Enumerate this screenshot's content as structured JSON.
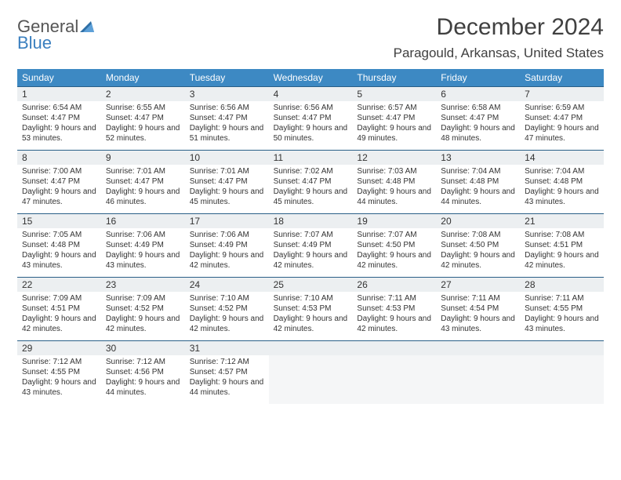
{
  "logo": {
    "line1": "General",
    "line2": "Blue"
  },
  "title": "December 2024",
  "location": "Paragould, Arkansas, United States",
  "colors": {
    "header_bg": "#3d89c3",
    "header_text": "#ffffff",
    "daynum_bg": "#eceff1",
    "daynum_border": "#2a5f87",
    "body_text": "#333333",
    "empty_bg": "#f5f6f7",
    "logo_gray": "#555555",
    "logo_blue": "#3a7fbf"
  },
  "day_headers": [
    "Sunday",
    "Monday",
    "Tuesday",
    "Wednesday",
    "Thursday",
    "Friday",
    "Saturday"
  ],
  "weeks": [
    [
      {
        "n": "1",
        "sr": "6:54 AM",
        "ss": "4:47 PM",
        "dl": "9 hours and 53 minutes."
      },
      {
        "n": "2",
        "sr": "6:55 AM",
        "ss": "4:47 PM",
        "dl": "9 hours and 52 minutes."
      },
      {
        "n": "3",
        "sr": "6:56 AM",
        "ss": "4:47 PM",
        "dl": "9 hours and 51 minutes."
      },
      {
        "n": "4",
        "sr": "6:56 AM",
        "ss": "4:47 PM",
        "dl": "9 hours and 50 minutes."
      },
      {
        "n": "5",
        "sr": "6:57 AM",
        "ss": "4:47 PM",
        "dl": "9 hours and 49 minutes."
      },
      {
        "n": "6",
        "sr": "6:58 AM",
        "ss": "4:47 PM",
        "dl": "9 hours and 48 minutes."
      },
      {
        "n": "7",
        "sr": "6:59 AM",
        "ss": "4:47 PM",
        "dl": "9 hours and 47 minutes."
      }
    ],
    [
      {
        "n": "8",
        "sr": "7:00 AM",
        "ss": "4:47 PM",
        "dl": "9 hours and 47 minutes."
      },
      {
        "n": "9",
        "sr": "7:01 AM",
        "ss": "4:47 PM",
        "dl": "9 hours and 46 minutes."
      },
      {
        "n": "10",
        "sr": "7:01 AM",
        "ss": "4:47 PM",
        "dl": "9 hours and 45 minutes."
      },
      {
        "n": "11",
        "sr": "7:02 AM",
        "ss": "4:47 PM",
        "dl": "9 hours and 45 minutes."
      },
      {
        "n": "12",
        "sr": "7:03 AM",
        "ss": "4:48 PM",
        "dl": "9 hours and 44 minutes."
      },
      {
        "n": "13",
        "sr": "7:04 AM",
        "ss": "4:48 PM",
        "dl": "9 hours and 44 minutes."
      },
      {
        "n": "14",
        "sr": "7:04 AM",
        "ss": "4:48 PM",
        "dl": "9 hours and 43 minutes."
      }
    ],
    [
      {
        "n": "15",
        "sr": "7:05 AM",
        "ss": "4:48 PM",
        "dl": "9 hours and 43 minutes."
      },
      {
        "n": "16",
        "sr": "7:06 AM",
        "ss": "4:49 PM",
        "dl": "9 hours and 43 minutes."
      },
      {
        "n": "17",
        "sr": "7:06 AM",
        "ss": "4:49 PM",
        "dl": "9 hours and 42 minutes."
      },
      {
        "n": "18",
        "sr": "7:07 AM",
        "ss": "4:49 PM",
        "dl": "9 hours and 42 minutes."
      },
      {
        "n": "19",
        "sr": "7:07 AM",
        "ss": "4:50 PM",
        "dl": "9 hours and 42 minutes."
      },
      {
        "n": "20",
        "sr": "7:08 AM",
        "ss": "4:50 PM",
        "dl": "9 hours and 42 minutes."
      },
      {
        "n": "21",
        "sr": "7:08 AM",
        "ss": "4:51 PM",
        "dl": "9 hours and 42 minutes."
      }
    ],
    [
      {
        "n": "22",
        "sr": "7:09 AM",
        "ss": "4:51 PM",
        "dl": "9 hours and 42 minutes."
      },
      {
        "n": "23",
        "sr": "7:09 AM",
        "ss": "4:52 PM",
        "dl": "9 hours and 42 minutes."
      },
      {
        "n": "24",
        "sr": "7:10 AM",
        "ss": "4:52 PM",
        "dl": "9 hours and 42 minutes."
      },
      {
        "n": "25",
        "sr": "7:10 AM",
        "ss": "4:53 PM",
        "dl": "9 hours and 42 minutes."
      },
      {
        "n": "26",
        "sr": "7:11 AM",
        "ss": "4:53 PM",
        "dl": "9 hours and 42 minutes."
      },
      {
        "n": "27",
        "sr": "7:11 AM",
        "ss": "4:54 PM",
        "dl": "9 hours and 43 minutes."
      },
      {
        "n": "28",
        "sr": "7:11 AM",
        "ss": "4:55 PM",
        "dl": "9 hours and 43 minutes."
      }
    ],
    [
      {
        "n": "29",
        "sr": "7:12 AM",
        "ss": "4:55 PM",
        "dl": "9 hours and 43 minutes."
      },
      {
        "n": "30",
        "sr": "7:12 AM",
        "ss": "4:56 PM",
        "dl": "9 hours and 44 minutes."
      },
      {
        "n": "31",
        "sr": "7:12 AM",
        "ss": "4:57 PM",
        "dl": "9 hours and 44 minutes."
      },
      null,
      null,
      null,
      null
    ]
  ],
  "labels": {
    "sunrise": "Sunrise:",
    "sunset": "Sunset:",
    "daylight": "Daylight:"
  }
}
